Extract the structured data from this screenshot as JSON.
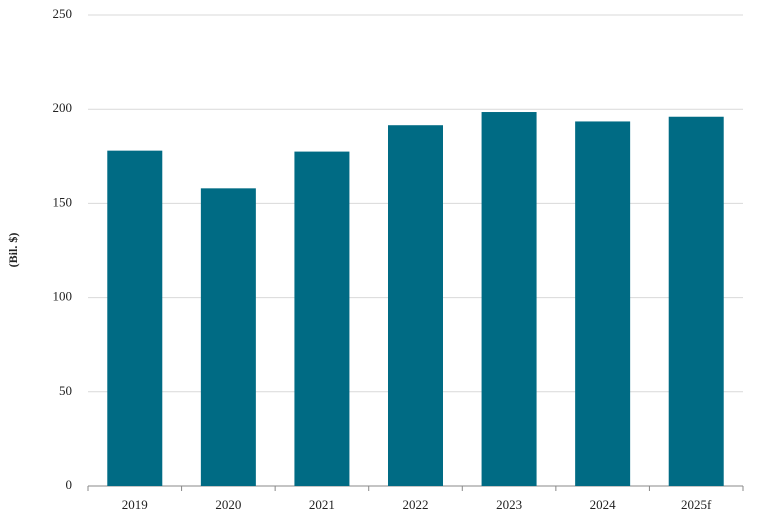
{
  "chart_data": {
    "type": "bar",
    "y_label": "(Bil. $)",
    "categories": [
      "2019",
      "2020",
      "2021",
      "2022",
      "2023",
      "2024",
      "2025f"
    ],
    "values": [
      178,
      158,
      177.5,
      191.5,
      198.5,
      193.5,
      196
    ],
    "color": "#006b84",
    "ylim": [
      0,
      250
    ],
    "yticks": [
      0,
      50,
      100,
      150,
      200,
      250
    ],
    "grid": true
  }
}
